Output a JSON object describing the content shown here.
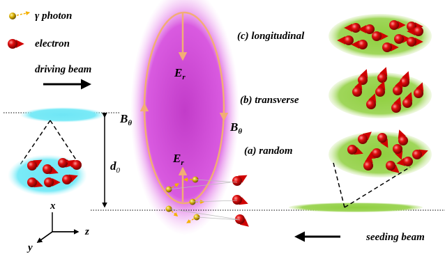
{
  "legend": {
    "photon": "γ photon",
    "electron": "electron"
  },
  "driving_beam": "driving beam",
  "seeding_beam": "seeding beam",
  "field_labels": {
    "radial_top": {
      "main": "E",
      "sub": "r"
    },
    "radial_bottom": {
      "main": "E",
      "sub": "r"
    },
    "azimuthal_left": {
      "main": "B",
      "sub": "θ"
    },
    "azimuthal_right": {
      "main": "B",
      "sub": "θ"
    }
  },
  "distance": {
    "main": "d",
    "sub": "0"
  },
  "polarizations": {
    "c": "(c) longitudinal",
    "b": "(b) transverse",
    "a": "(a) random"
  },
  "axes": {
    "x": "x",
    "y": "y",
    "z": "z"
  }
}
